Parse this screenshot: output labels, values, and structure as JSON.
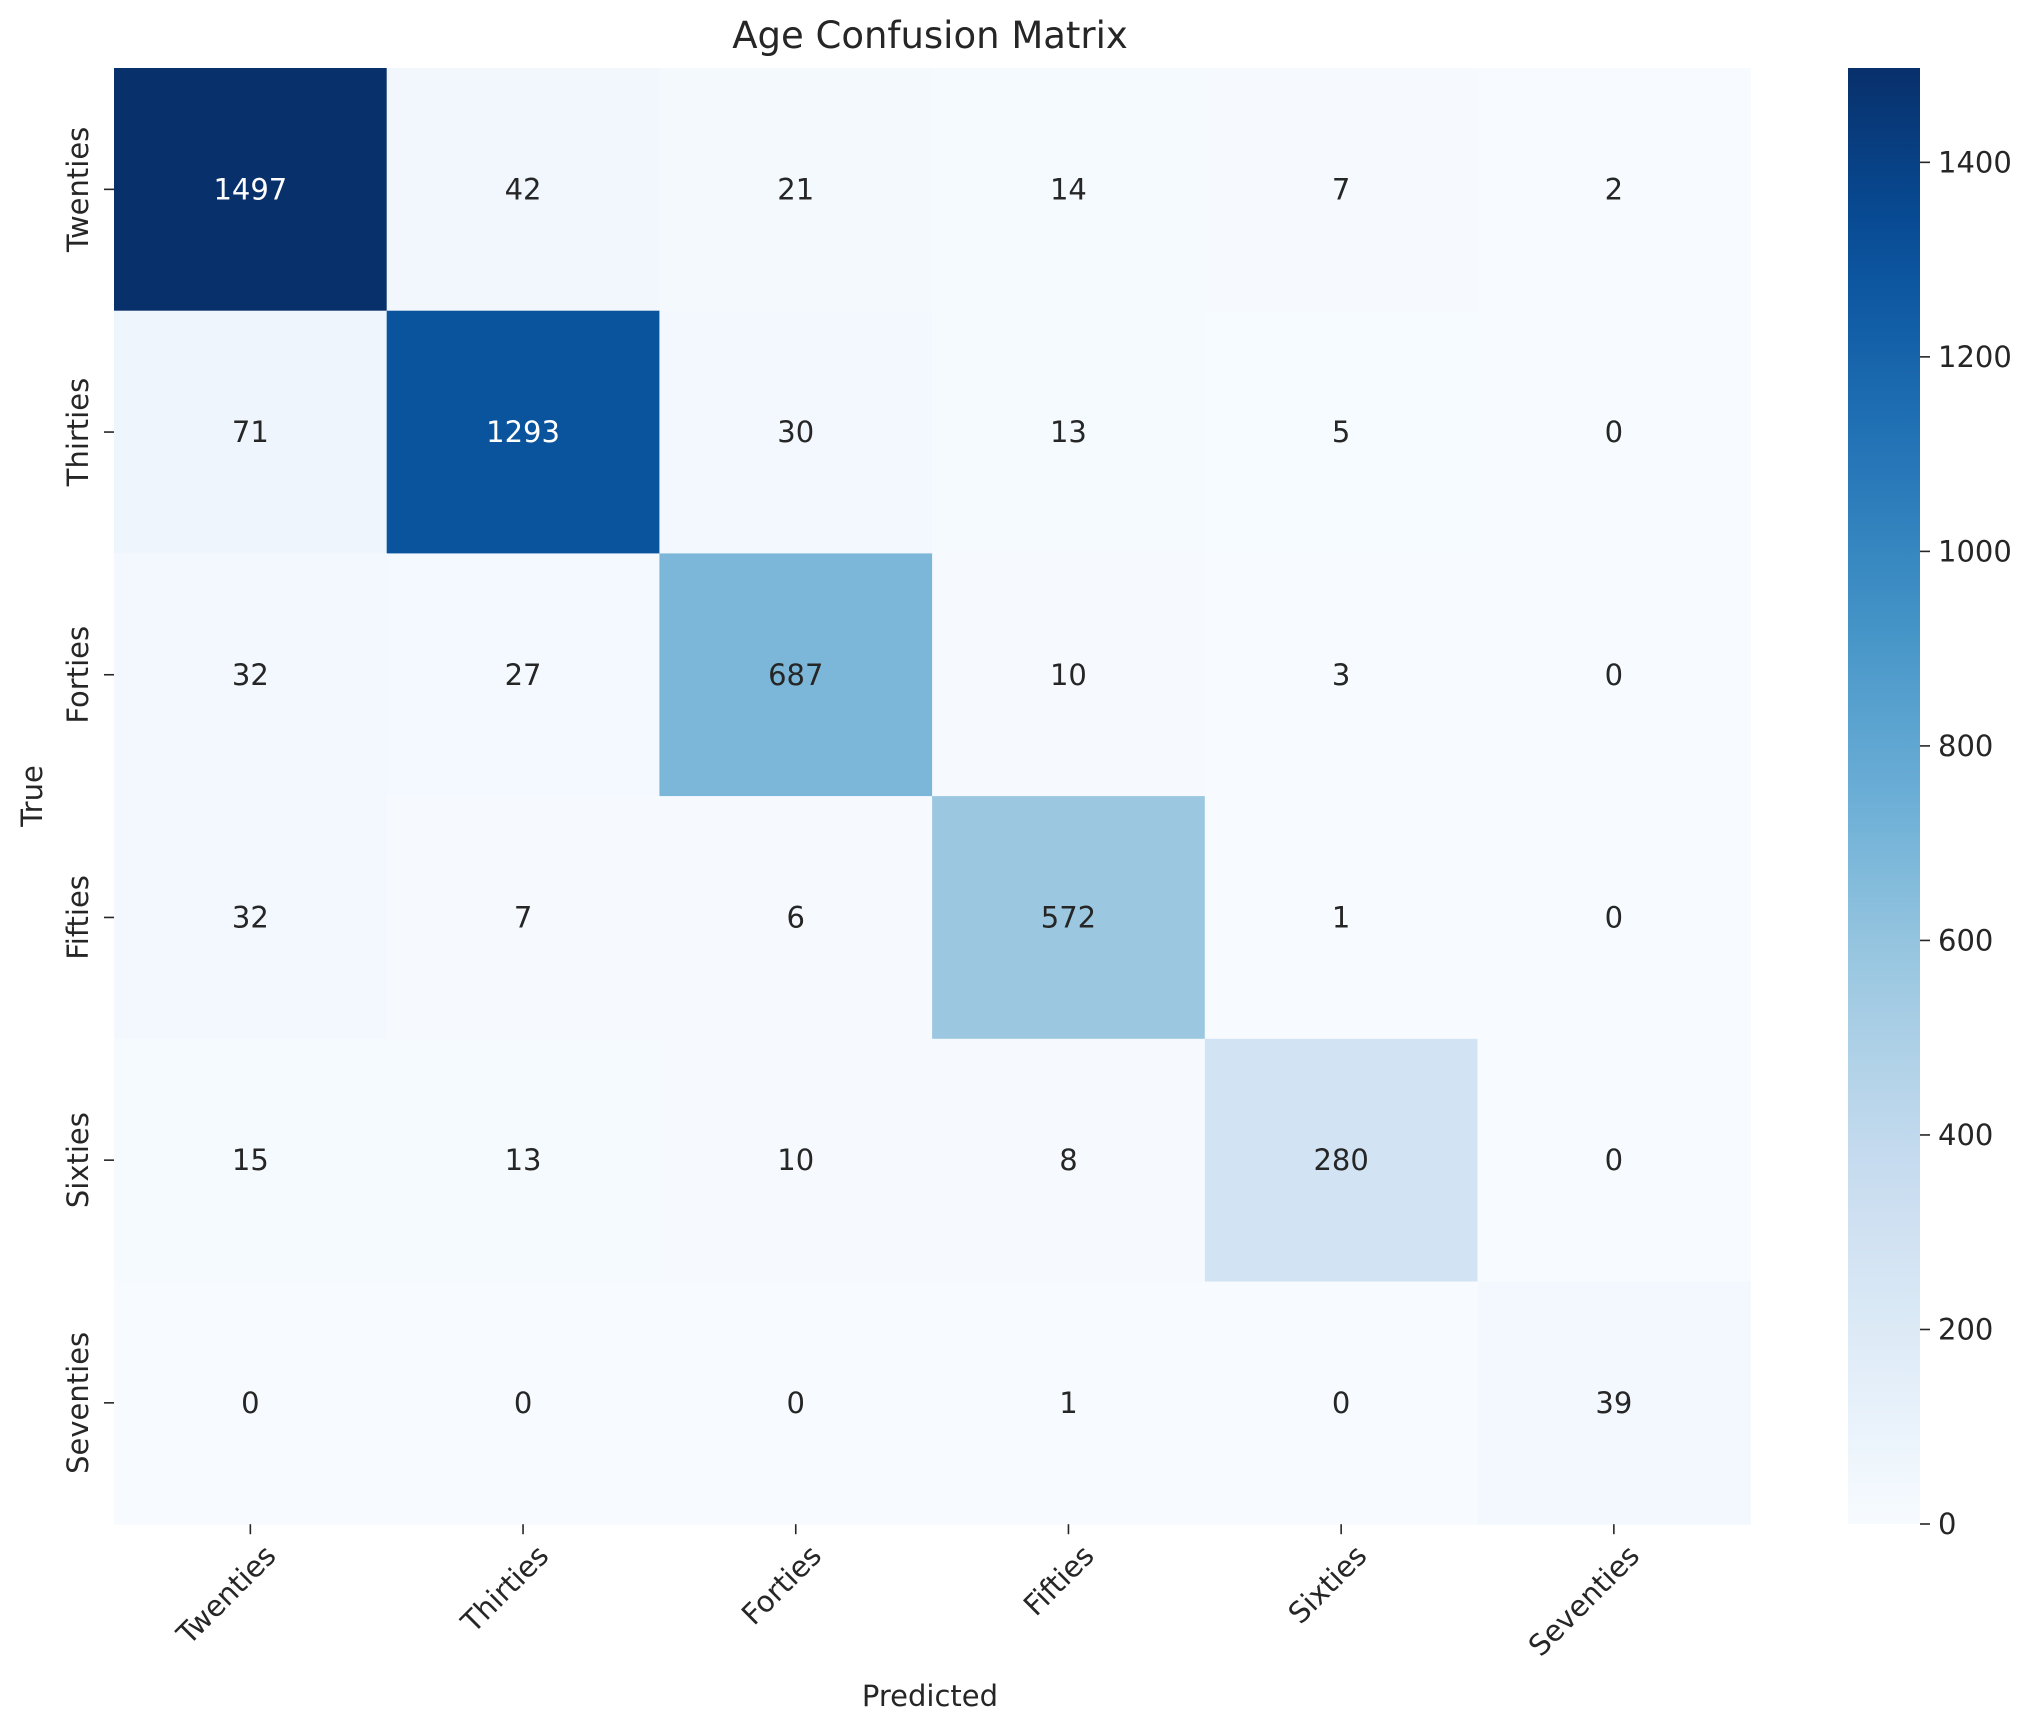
{
  "chart_data": {
    "type": "heatmap",
    "title": "Age Confusion Matrix",
    "xlabel": "Predicted",
    "ylabel": "True",
    "x_categories": [
      "Twenties",
      "Thirties",
      "Forties",
      "Fifties",
      "Sixties",
      "Seventies"
    ],
    "y_categories": [
      "Twenties",
      "Thirties",
      "Forties",
      "Fifties",
      "Sixties",
      "Seventies"
    ],
    "matrix": [
      [
        1497,
        42,
        21,
        14,
        7,
        2
      ],
      [
        71,
        1293,
        30,
        13,
        5,
        0
      ],
      [
        32,
        27,
        687,
        10,
        3,
        0
      ],
      [
        32,
        7,
        6,
        572,
        1,
        0
      ],
      [
        15,
        13,
        10,
        8,
        280,
        0
      ],
      [
        0,
        0,
        0,
        1,
        0,
        39
      ]
    ],
    "colorbar": {
      "min": 0,
      "max": 1497,
      "ticks": [
        0,
        200,
        400,
        600,
        800,
        1000,
        1200,
        1400
      ],
      "colormap": "Blues"
    },
    "grid": false,
    "x_tick_rotation_deg": 45
  }
}
